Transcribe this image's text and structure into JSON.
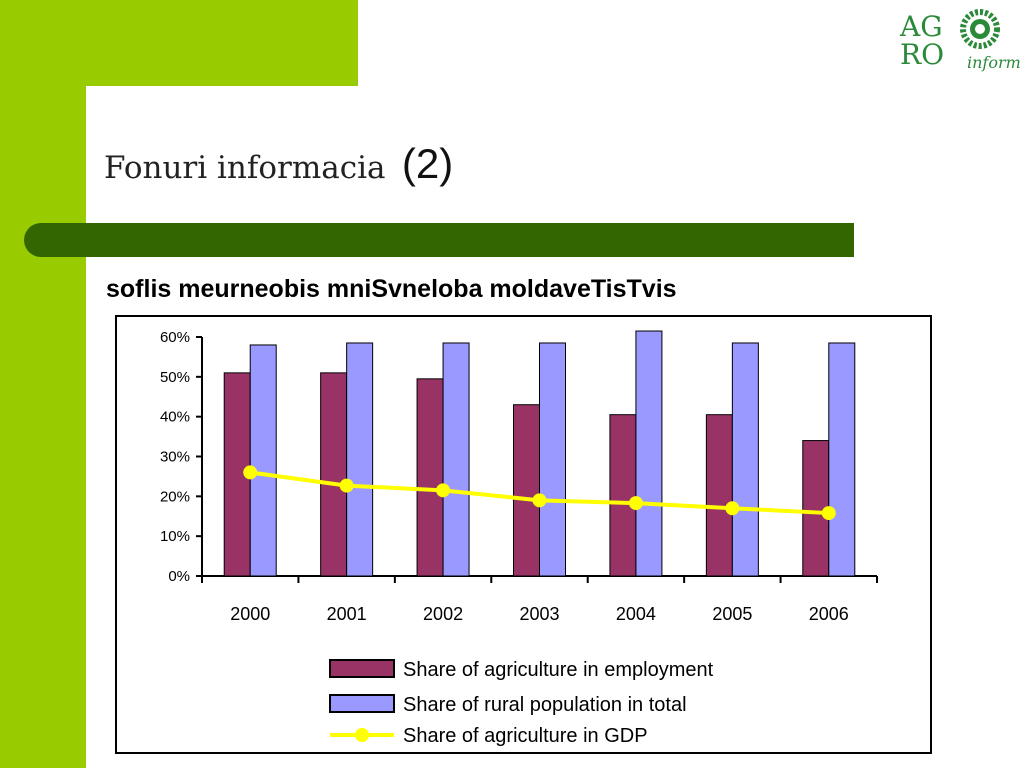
{
  "slide": {
    "title_main": "Fonuri informacia",
    "title_number": "(2)",
    "chart_heading": "soflis meurneobis mniSvneloba moldaveTisTvis"
  },
  "logo": {
    "line1": "AG",
    "line2": "RO",
    "line3": "inform"
  },
  "colors": {
    "green_light": "#99cc00",
    "green_dark": "#336600",
    "employment": "#993366",
    "rural": "#9999ff",
    "gdp": "#ffff00"
  },
  "chart_data": {
    "type": "bar",
    "title": "soflis meurneobis mniSvneloba moldaveTisTvis",
    "xlabel": "",
    "ylabel": "",
    "categories": [
      "2000",
      "2001",
      "2002",
      "2003",
      "2004",
      "2005",
      "2006"
    ],
    "ylim": [
      0,
      0.6
    ],
    "yticks": [
      "0%",
      "10%",
      "20%",
      "30%",
      "40%",
      "50%",
      "60%"
    ],
    "grid": false,
    "legend_placement": "bottom",
    "series": [
      {
        "name": "Share of agriculture in employment",
        "type": "bar",
        "color": "#993366",
        "values": [
          0.51,
          0.51,
          0.495,
          0.43,
          0.405,
          0.405,
          0.34
        ]
      },
      {
        "name": "Share of rural population in total",
        "type": "bar",
        "color": "#9999ff",
        "values": [
          0.58,
          0.585,
          0.585,
          0.585,
          0.615,
          0.585,
          0.585
        ]
      },
      {
        "name": "Share of agriculture in GDP",
        "type": "line",
        "color": "#ffff00",
        "values": [
          0.26,
          0.227,
          0.215,
          0.19,
          0.183,
          0.17,
          0.158
        ]
      }
    ]
  }
}
